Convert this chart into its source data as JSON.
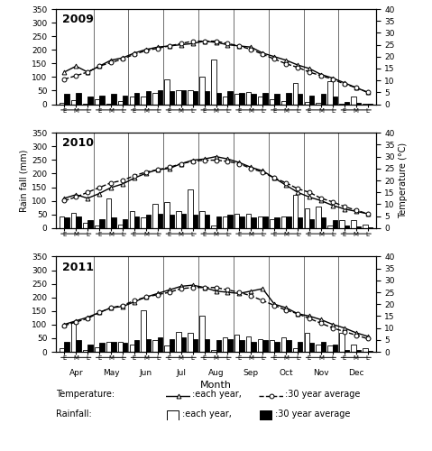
{
  "years": [
    "2009",
    "2010",
    "2011"
  ],
  "months": [
    "Apr",
    "May",
    "Jun",
    "Jul",
    "Aug",
    "Sep",
    "Oct",
    "Nov",
    "Dec"
  ],
  "n_ticks": 27,
  "temp_each_year": {
    "2009": [
      13.5,
      16.0,
      13.5,
      16.0,
      18.5,
      19.5,
      21.5,
      23.0,
      24.0,
      24.5,
      25.0,
      25.5,
      26.5,
      26.0,
      25.0,
      24.5,
      24.0,
      21.5,
      20.0,
      18.5,
      16.5,
      15.0,
      12.5,
      11.0,
      9.0,
      7.0,
      5.0
    ],
    "2010": [
      12.5,
      14.0,
      12.5,
      14.5,
      17.0,
      18.5,
      21.0,
      23.0,
      24.5,
      25.0,
      27.0,
      28.5,
      29.0,
      30.0,
      29.0,
      27.5,
      25.5,
      24.0,
      21.0,
      18.0,
      15.0,
      13.0,
      11.5,
      9.5,
      8.0,
      7.0,
      6.0
    ],
    "2011": [
      11.5,
      13.0,
      14.5,
      16.5,
      18.5,
      19.0,
      21.0,
      23.0,
      24.5,
      26.0,
      27.5,
      28.0,
      27.0,
      25.5,
      25.0,
      24.5,
      25.5,
      26.5,
      20.0,
      18.5,
      16.0,
      15.0,
      13.5,
      11.5,
      10.0,
      8.0,
      6.5
    ]
  },
  "temp_30yr": {
    "2009": [
      10.5,
      12.0,
      13.5,
      16.0,
      17.5,
      19.0,
      21.0,
      22.5,
      23.5,
      24.5,
      25.5,
      26.5,
      26.5,
      26.5,
      25.5,
      24.5,
      23.0,
      21.0,
      19.0,
      17.0,
      15.5,
      13.5,
      12.0,
      10.5,
      8.5,
      7.0,
      5.0
    ],
    "2010": [
      11.5,
      13.0,
      15.0,
      17.0,
      19.0,
      20.0,
      22.0,
      23.5,
      24.5,
      25.5,
      27.0,
      28.0,
      28.5,
      28.5,
      28.0,
      27.0,
      25.0,
      23.5,
      21.0,
      19.0,
      16.5,
      15.0,
      12.5,
      11.0,
      9.0,
      7.5,
      6.0
    ],
    "2011": [
      11.0,
      12.5,
      14.0,
      16.5,
      18.5,
      19.5,
      21.5,
      23.0,
      24.0,
      25.0,
      26.5,
      27.0,
      27.0,
      27.0,
      26.0,
      25.0,
      23.5,
      21.5,
      19.5,
      17.5,
      16.0,
      14.0,
      12.0,
      10.0,
      8.5,
      7.0,
      5.5
    ]
  },
  "rain_each_year": {
    "2009": [
      5,
      15,
      3,
      18,
      3,
      12,
      28,
      30,
      40,
      90,
      50,
      50,
      100,
      165,
      28,
      38,
      45,
      28,
      18,
      12,
      78,
      8,
      5,
      85,
      3,
      28,
      3
    ],
    "2010": [
      42,
      55,
      18,
      8,
      110,
      12,
      62,
      38,
      88,
      95,
      62,
      142,
      62,
      8,
      42,
      52,
      52,
      42,
      32,
      42,
      122,
      72,
      78,
      8,
      28,
      28,
      12
    ],
    "2011": [
      12,
      108,
      8,
      18,
      38,
      38,
      28,
      152,
      42,
      22,
      72,
      68,
      132,
      8,
      52,
      62,
      58,
      48,
      42,
      52,
      12,
      68,
      28,
      22,
      68,
      28,
      12
    ]
  },
  "rain_30yr": {
    "2009": [
      38,
      42,
      28,
      32,
      38,
      32,
      42,
      48,
      52,
      48,
      52,
      48,
      48,
      42,
      48,
      42,
      38,
      42,
      38,
      42,
      38,
      32,
      38,
      28,
      8,
      6,
      3
    ],
    "2010": [
      38,
      42,
      28,
      32,
      38,
      32,
      42,
      48,
      52,
      48,
      52,
      48,
      48,
      42,
      48,
      42,
      38,
      42,
      38,
      42,
      38,
      32,
      38,
      28,
      8,
      6,
      3
    ],
    "2011": [
      38,
      42,
      28,
      32,
      38,
      32,
      42,
      48,
      52,
      48,
      52,
      48,
      48,
      42,
      48,
      42,
      38,
      42,
      38,
      42,
      38,
      32,
      38,
      28,
      8,
      6,
      3
    ]
  },
  "ylabel_left": "Rain fall (mm)",
  "ylabel_right": "Temperature (°C)",
  "xlabel": "Month",
  "ylim_rain": [
    0,
    350
  ],
  "ylim_temp": [
    0,
    40
  ],
  "yticks_rain": [
    0,
    50,
    100,
    150,
    200,
    250,
    300,
    350
  ],
  "yticks_temp": [
    0,
    5,
    10,
    15,
    20,
    25,
    30,
    35,
    40
  ],
  "legend_temp_label1": ":each year,",
  "legend_temp_label2": ":30 year average",
  "legend_rain_label1": ":each year,",
  "legend_rain_label2": ":30 year average",
  "legend_temp_prefix": "Temperature: ",
  "legend_rain_prefix": "Rainfall:"
}
